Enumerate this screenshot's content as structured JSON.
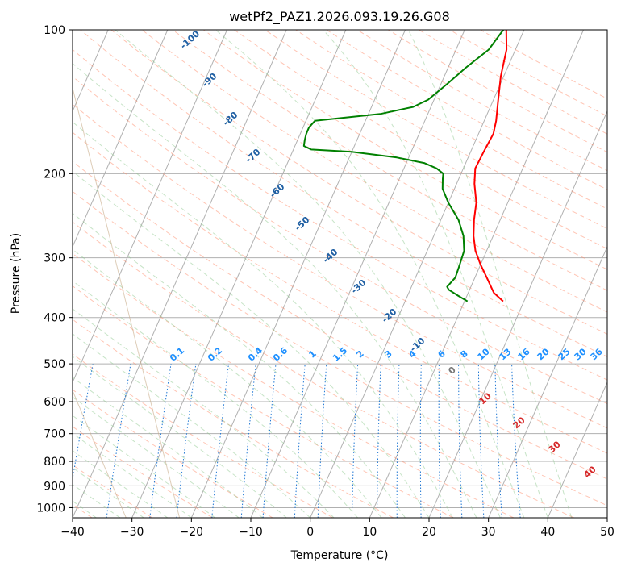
{
  "chart_data": {
    "type": "line",
    "title": "wetPf2_PAZ1.2026.093.19.26.G08",
    "xlabel": "Temperature (°C)",
    "ylabel": "Pressure (hPa)",
    "xlim": [
      -40,
      50
    ],
    "ylim": [
      1050,
      100
    ],
    "y_scale": "log",
    "skew": true,
    "grid": true,
    "x_ticks": [
      -40,
      -30,
      -20,
      -10,
      0,
      10,
      20,
      30,
      40,
      50
    ],
    "x_tick_labels": [
      "−40",
      "−30",
      "−20",
      "−10",
      "0",
      "10",
      "20",
      "30",
      "40",
      "50"
    ],
    "y_ticks": [
      100,
      200,
      300,
      400,
      500,
      600,
      700,
      800,
      900,
      1000
    ],
    "y_tick_labels": [
      "100",
      "200",
      "300",
      "400",
      "500",
      "600",
      "700",
      "800",
      "900",
      "1000"
    ],
    "series": [
      {
        "color": "#ff0000",
        "points": [
          [
            100,
            -3
          ],
          [
            110,
            -1.5
          ],
          [
            125,
            -0.5
          ],
          [
            140,
            0.8
          ],
          [
            155,
            2
          ],
          [
            165,
            2.5
          ],
          [
            180,
            2.2
          ],
          [
            195,
            2
          ],
          [
            210,
            3
          ],
          [
            230,
            4.7
          ],
          [
            250,
            5.6
          ],
          [
            270,
            6.7
          ],
          [
            290,
            8.1
          ],
          [
            310,
            10
          ],
          [
            330,
            12
          ],
          [
            355,
            14.3
          ],
          [
            370,
            16.5
          ]
        ]
      },
      {
        "color": "#008000",
        "points": [
          [
            100,
            -3.5
          ],
          [
            110,
            -4.5
          ],
          [
            120,
            -7
          ],
          [
            130,
            -9
          ],
          [
            140,
            -11
          ],
          [
            145,
            -13
          ],
          [
            150,
            -18
          ],
          [
            155,
            -28.5
          ],
          [
            160,
            -29
          ],
          [
            165,
            -29
          ],
          [
            170,
            -28.8
          ],
          [
            175,
            -28.5
          ],
          [
            178,
            -27
          ],
          [
            180,
            -20
          ],
          [
            185,
            -12
          ],
          [
            190,
            -7
          ],
          [
            195,
            -4.5
          ],
          [
            200,
            -3
          ],
          [
            205,
            -2.7
          ],
          [
            215,
            -2
          ],
          [
            230,
            0
          ],
          [
            250,
            3
          ],
          [
            270,
            5
          ],
          [
            290,
            6.2
          ],
          [
            310,
            6.5
          ],
          [
            330,
            6.7
          ],
          [
            345,
            6
          ],
          [
            350,
            6.5
          ],
          [
            360,
            8.5
          ],
          [
            370,
            10.5
          ]
        ]
      }
    ],
    "dry_adiabat_labels": [
      {
        "text": "-100",
        "t": -100
      },
      {
        "text": "-90",
        "t": -90
      },
      {
        "text": "-80",
        "t": -80
      },
      {
        "text": "-70",
        "t": -70
      },
      {
        "text": "-60",
        "t": -60
      },
      {
        "text": "-50",
        "t": -50
      },
      {
        "text": "-40",
        "t": -40
      },
      {
        "text": "-30",
        "t": -30
      },
      {
        "text": "-20",
        "t": -20
      },
      {
        "text": "-10",
        "t": -10
      }
    ],
    "mixing_ratio_labels": [
      "0.1",
      "0.2",
      "0.4",
      "0.6",
      "1",
      "1.5",
      "2",
      "3",
      "4",
      "6",
      "8",
      "10",
      "13",
      "16",
      "20",
      "25",
      "30",
      "36"
    ],
    "moist_adiabat_labels": [
      "0",
      "10",
      "20",
      "30",
      "40"
    ]
  }
}
